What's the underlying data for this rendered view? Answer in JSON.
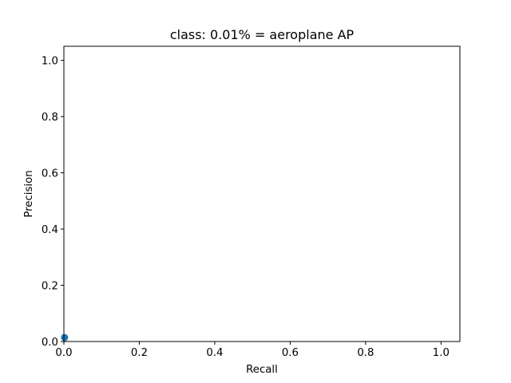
{
  "chart_data": {
    "type": "area",
    "title": "class: 0.01% = aeroplane AP",
    "xlabel": "Recall",
    "ylabel": "Precision",
    "xlim": [
      0.0,
      1.05
    ],
    "ylim": [
      0.0,
      1.05
    ],
    "xticks": [
      0.0,
      0.2,
      0.4,
      0.6,
      0.8,
      1.0
    ],
    "yticks": [
      0.0,
      0.2,
      0.4,
      0.6,
      0.8,
      1.0
    ],
    "xtick_labels": [
      "0.0",
      "0.2",
      "0.4",
      "0.6",
      "0.8",
      "1.0"
    ],
    "ytick_labels": [
      "0.0",
      "0.2",
      "0.4",
      "0.6",
      "0.8",
      "1.0"
    ],
    "series": [
      {
        "x": [
          0.0,
          0.0019,
          0.0019
        ],
        "y": [
          0.0,
          0.0,
          0.0142
        ],
        "color": "#1f77b4"
      }
    ],
    "grid": false,
    "legend": "none"
  }
}
